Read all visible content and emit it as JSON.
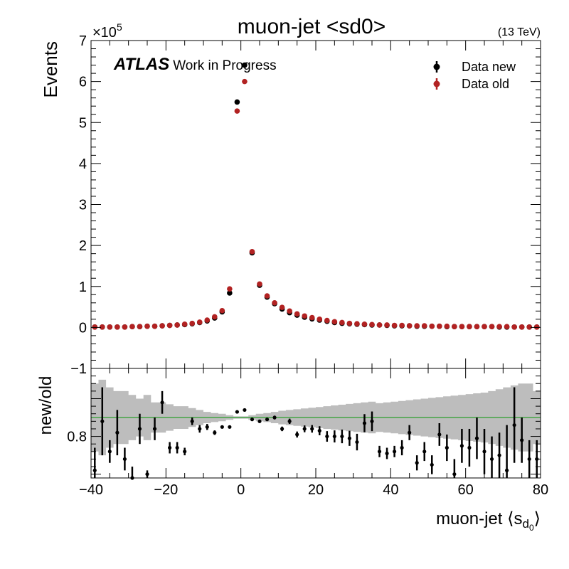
{
  "chart_data": {
    "type": "scatter",
    "title": "muon-jet <sd0>",
    "energy_label": "(13 TeV)",
    "experiment": "ATLAS",
    "experiment_note": "Work in Progress",
    "xlabel": "muon-jet ⟨s",
    "xlabel_sub": "d",
    "xlabel_subsub": "0",
    "xlabel_close": "⟩",
    "ylabel": "Events",
    "ratio_ylabel": "new/old",
    "y_multiplier": "×10",
    "y_multiplier_exp": "5",
    "xlim": [
      -40,
      80
    ],
    "ylim": [
      -1,
      7
    ],
    "ratio_ylim": [
      0.69,
      0.98
    ],
    "x_ticks": [
      -40,
      -20,
      0,
      20,
      40,
      60,
      80
    ],
    "x_tick_labels": [
      "−40",
      "−20",
      "0",
      "20",
      "40",
      "60",
      "80"
    ],
    "y_ticks": [
      -1,
      0,
      1,
      2,
      3,
      4,
      5,
      6,
      7
    ],
    "y_tick_labels": [
      "−1",
      "0",
      "1",
      "2",
      "3",
      "4",
      "5",
      "6",
      "7"
    ],
    "ratio_ticks": [
      0.8
    ],
    "ratio_tick_labels": [
      "0.8"
    ],
    "ratio_reference": 0.85,
    "ratio_reference_color": "#2ca02c",
    "legend_position": "top-right",
    "x": [
      -39,
      -37,
      -35,
      -33,
      -31,
      -29,
      -27,
      -25,
      -23,
      -21,
      -19,
      -17,
      -15,
      -13,
      -11,
      -9,
      -7,
      -5,
      -3,
      -1,
      1,
      3,
      5,
      7,
      9,
      11,
      13,
      15,
      17,
      19,
      21,
      23,
      25,
      27,
      29,
      31,
      33,
      35,
      37,
      39,
      41,
      43,
      45,
      47,
      49,
      51,
      53,
      55,
      57,
      59,
      61,
      63,
      65,
      67,
      69,
      71,
      73,
      75,
      77,
      79
    ],
    "series": [
      {
        "name": "Data new",
        "color": "#000000",
        "values": [
          0.01,
          0.01,
          0.01,
          0.01,
          0.01,
          0.02,
          0.02,
          0.03,
          0.03,
          0.04,
          0.05,
          0.06,
          0.07,
          0.09,
          0.12,
          0.16,
          0.23,
          0.38,
          0.84,
          5.5,
          6.4,
          1.82,
          1.03,
          0.74,
          0.58,
          0.45,
          0.36,
          0.3,
          0.25,
          0.21,
          0.18,
          0.15,
          0.12,
          0.1,
          0.09,
          0.08,
          0.07,
          0.06,
          0.06,
          0.05,
          0.04,
          0.04,
          0.04,
          0.03,
          0.03,
          0.03,
          0.03,
          0.02,
          0.02,
          0.02,
          0.02,
          0.02,
          0.02,
          0.02,
          0.01,
          0.01,
          0.01,
          0.01,
          0.01,
          0.01
        ]
      },
      {
        "name": "Data old",
        "color": "#b22222",
        "values": [
          0.01,
          0.01,
          0.01,
          0.01,
          0.01,
          0.02,
          0.02,
          0.03,
          0.03,
          0.04,
          0.05,
          0.06,
          0.08,
          0.1,
          0.13,
          0.18,
          0.26,
          0.41,
          0.94,
          5.28,
          6.0,
          1.85,
          1.06,
          0.77,
          0.6,
          0.49,
          0.4,
          0.33,
          0.28,
          0.24,
          0.2,
          0.17,
          0.14,
          0.12,
          0.1,
          0.09,
          0.08,
          0.07,
          0.06,
          0.06,
          0.05,
          0.05,
          0.04,
          0.04,
          0.04,
          0.03,
          0.03,
          0.03,
          0.02,
          0.02,
          0.02,
          0.02,
          0.02,
          0.02,
          0.02,
          0.02,
          0.01,
          0.01,
          0.01,
          0.01
        ]
      }
    ],
    "ratio": {
      "values": [
        0.71,
        0.84,
        0.76,
        0.81,
        0.74,
        0.69,
        0.82,
        0.7,
        0.82,
        0.89,
        0.77,
        0.77,
        0.76,
        0.84,
        0.82,
        0.825,
        0.81,
        0.825,
        0.825,
        0.865,
        0.87,
        0.845,
        0.84,
        0.845,
        0.85,
        0.82,
        0.84,
        0.805,
        0.82,
        0.82,
        0.815,
        0.8,
        0.8,
        0.8,
        0.795,
        0.785,
        0.835,
        0.84,
        0.76,
        0.755,
        0.76,
        0.77,
        0.81,
        0.73,
        0.76,
        0.725,
        0.805,
        0.77,
        0.7,
        0.775,
        0.77,
        0.795,
        0.76,
        0.74,
        0.75,
        0.71,
        0.83,
        0.79,
        0.74,
        0.74
      ],
      "errors": [
        0.06,
        0.09,
        0.03,
        0.06,
        0.03,
        0.03,
        0.04,
        0.01,
        0.03,
        0.03,
        0.015,
        0.015,
        0.01,
        0.01,
        0.01,
        0.008,
        0.006,
        0.004,
        0.002,
        0.001,
        0.001,
        0.002,
        0.003,
        0.004,
        0.005,
        0.006,
        0.007,
        0.008,
        0.009,
        0.01,
        0.012,
        0.014,
        0.016,
        0.018,
        0.02,
        0.022,
        0.024,
        0.026,
        0.015,
        0.015,
        0.015,
        0.02,
        0.02,
        0.02,
        0.025,
        0.025,
        0.03,
        0.035,
        0.04,
        0.045,
        0.05,
        0.055,
        0.06,
        0.06,
        0.06,
        0.12,
        0.1,
        0.06,
        0.05,
        0.05
      ],
      "band_half_width": [
        0.09,
        0.1,
        0.08,
        0.07,
        0.07,
        0.06,
        0.05,
        0.06,
        0.04,
        0.04,
        0.035,
        0.03,
        0.03,
        0.025,
        0.02,
        0.015,
        0.012,
        0.01,
        0.006,
        0.003,
        0.003,
        0.006,
        0.01,
        0.012,
        0.015,
        0.018,
        0.02,
        0.022,
        0.024,
        0.026,
        0.028,
        0.03,
        0.032,
        0.034,
        0.036,
        0.038,
        0.04,
        0.042,
        0.038,
        0.04,
        0.042,
        0.044,
        0.046,
        0.048,
        0.05,
        0.052,
        0.054,
        0.056,
        0.058,
        0.06,
        0.062,
        0.064,
        0.066,
        0.07,
        0.075,
        0.08,
        0.085,
        0.09,
        0.09,
        0.07
      ]
    }
  }
}
